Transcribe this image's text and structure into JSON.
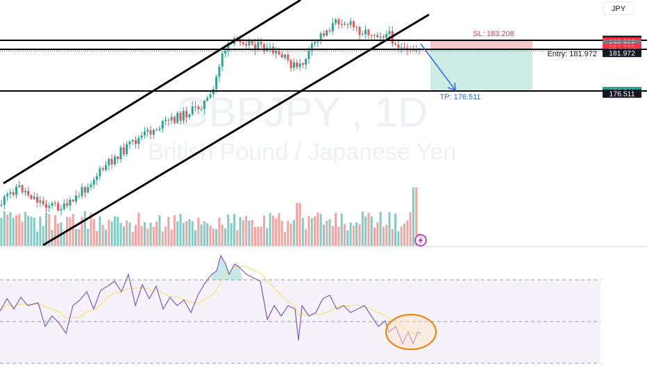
{
  "currency": "JPY",
  "watermark": {
    "symbol": "GBPJPY , 1D",
    "description": "British Pound / Japanese Yen"
  },
  "annotations": {
    "sl_label": "SL: 183.208",
    "entry_label": "Entry: 181.972",
    "tp_label": "TP: 176.511"
  },
  "price_axis_labels": [
    {
      "text": "183.208",
      "price": 183.208,
      "bg": "#131722",
      "fg": "#ffffff"
    },
    {
      "text": "183.208",
      "price": 182.98,
      "bg": "#f23645",
      "fg": "#ffffff"
    },
    {
      "text": "182.015",
      "price": 182.62,
      "bg": "#787b86",
      "fg": "#ffffff"
    },
    {
      "text": "181.990",
      "price": 182.18,
      "bg": "#f23645",
      "fg": "#ffffff"
    },
    {
      "text": "07:44:12",
      "price": 181.84,
      "bg": "#f23645",
      "fg": "#ffffff"
    },
    {
      "text": "181.972",
      "price": 181.5,
      "bg": "#131722",
      "fg": "#ffffff"
    },
    {
      "text": "176.511",
      "price": 176.511,
      "bg": "#22ab94",
      "fg": "#ffffff"
    },
    {
      "text": "176.511",
      "price": 176.17,
      "bg": "#131722",
      "fg": "#ffffff"
    }
  ],
  "colors": {
    "up": "#26a69a",
    "down": "#ef5350",
    "up_volume": "#80cbc4",
    "down_volume": "#f5a3a1",
    "rsi_line": "#7e57c2",
    "rsi_ma": "#f7e26b",
    "rsi_band": "#7e57c2",
    "stop_zone": "#f7c6c8",
    "target_zone": "#cdece3",
    "arrow": "#2962ff",
    "highlight": "#f57c00",
    "highlight_fill": "#fbe3c4"
  },
  "chart_data": {
    "type": "candlestick",
    "price_levels": {
      "stop_loss": 183.208,
      "entry": 181.972,
      "take_profit": 176.511
    },
    "levels_prices": [
      182.015,
      176.511
    ],
    "rsi_band": [
      30,
      70
    ],
    "rsi_ylim": [
      15,
      100
    ],
    "volume_bar_count": 150
  }
}
